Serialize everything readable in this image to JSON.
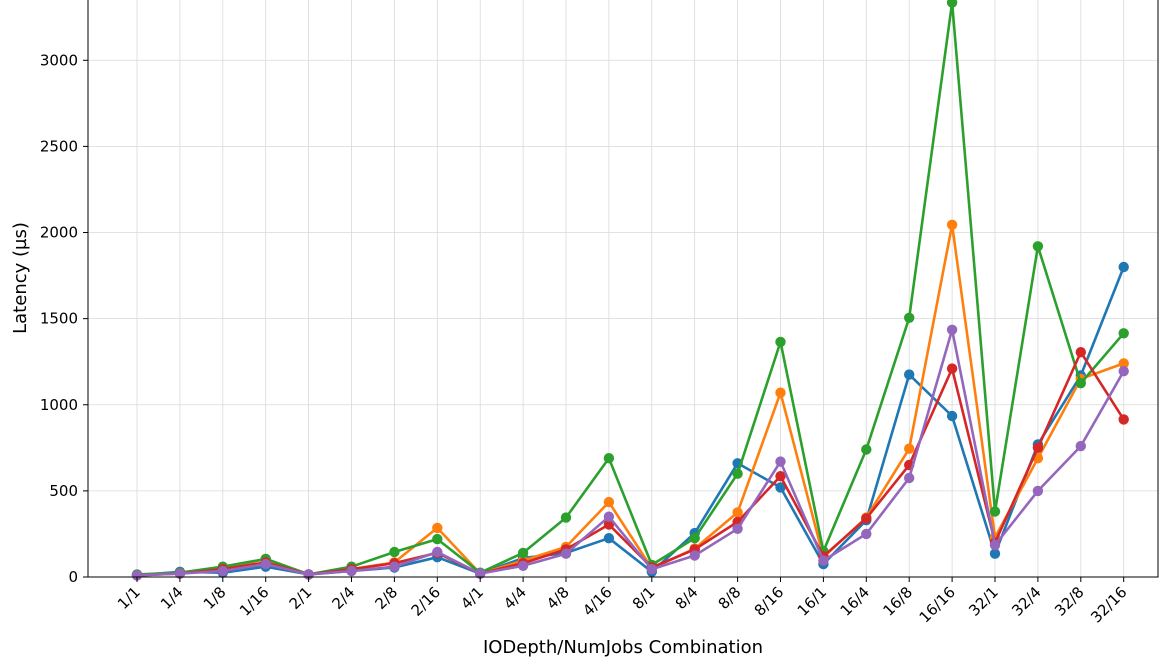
{
  "chart_data": {
    "type": "line",
    "title": "",
    "xlabel": "IODepth/NumJobs Combination",
    "ylabel": "Latency (µs)",
    "categories": [
      "1/1",
      "1/4",
      "1/8",
      "1/16",
      "2/1",
      "2/4",
      "2/8",
      "2/16",
      "4/1",
      "4/4",
      "4/8",
      "4/16",
      "8/1",
      "8/4",
      "8/8",
      "8/16",
      "16/1",
      "16/4",
      "16/8",
      "16/16",
      "32/1",
      "32/4",
      "32/8",
      "32/16"
    ],
    "yticks": [
      0,
      500,
      1000,
      1500,
      2000,
      2500,
      3000
    ],
    "ylim": [
      0,
      3350
    ],
    "grid": true,
    "series": [
      {
        "color": "#1f77b4",
        "values": [
          10,
          30,
          25,
          60,
          15,
          35,
          55,
          115,
          20,
          110,
          140,
          225,
          30,
          255,
          660,
          520,
          75,
          330,
          1175,
          935,
          135,
          770,
          1170,
          1800
        ]
      },
      {
        "color": "#ff7f0e",
        "values": [
          10,
          25,
          45,
          105,
          15,
          45,
          85,
          285,
          20,
          95,
          175,
          435,
          50,
          165,
          375,
          1070,
          115,
          345,
          745,
          2045,
          230,
          690,
          1150,
          1240
        ]
      },
      {
        "color": "#2ca02c",
        "values": [
          15,
          25,
          60,
          105,
          15,
          60,
          145,
          220,
          25,
          140,
          345,
          690,
          70,
          225,
          600,
          1365,
          150,
          740,
          1505,
          3335,
          380,
          1920,
          1125,
          1415
        ]
      },
      {
        "color": "#d62728",
        "values": [
          10,
          20,
          45,
          85,
          15,
          45,
          80,
          140,
          20,
          80,
          160,
          305,
          55,
          160,
          320,
          585,
          120,
          340,
          650,
          1210,
          200,
          750,
          1305,
          915
        ]
      },
      {
        "color": "#9467bd",
        "values": [
          10,
          20,
          35,
          75,
          15,
          35,
          60,
          145,
          20,
          65,
          135,
          350,
          45,
          125,
          280,
          670,
          95,
          250,
          575,
          1435,
          185,
          500,
          760,
          1195
        ]
      }
    ]
  }
}
